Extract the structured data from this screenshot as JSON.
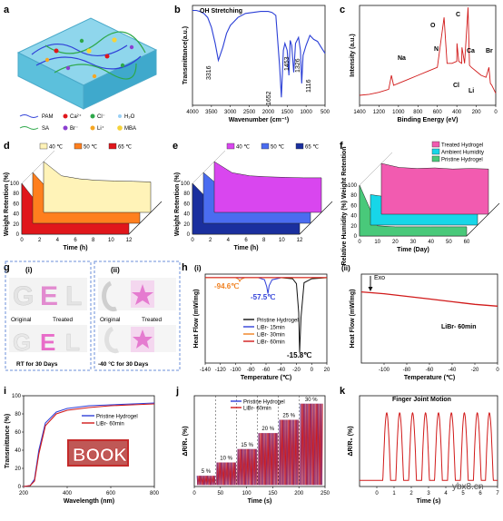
{
  "panels": {
    "a": {
      "letter": "a",
      "legend": [
        {
          "symbol": "line-blue",
          "label": "PAM"
        },
        {
          "symbol": "dot-red",
          "label": "Ca²⁺"
        },
        {
          "symbol": "dot-green",
          "label": "Cl⁻"
        },
        {
          "symbol": "water",
          "label": "H₂O"
        },
        {
          "symbol": "line-green",
          "label": "SA"
        },
        {
          "symbol": "dot-purple",
          "label": "Br⁻"
        },
        {
          "symbol": "dot-orange",
          "label": "Li⁺"
        },
        {
          "symbol": "mba-yellow",
          "label": "MBA"
        }
      ]
    },
    "b": {
      "letter": "b",
      "title": "OH Stretching",
      "peaks": [
        "3316",
        "1652",
        "1453",
        "1326",
        "1116"
      ]
    },
    "c": {
      "letter": "c",
      "peaks": [
        "O",
        "C",
        "Na",
        "N",
        "Ca",
        "Br",
        "Cl",
        "Li"
      ]
    },
    "d": {
      "letter": "d"
    },
    "e": {
      "letter": "e"
    },
    "f": {
      "letter": "f"
    },
    "g": {
      "letter": "g",
      "sub_i": "(i)",
      "sub_ii": "(ii)",
      "labels": {
        "original": "Original",
        "treated": "Treated",
        "rt": "RT for 30 Days",
        "cold": "-40 °C for 30 Days"
      },
      "letters_word": [
        "G",
        "E",
        "L"
      ]
    },
    "h": {
      "letter": "h",
      "sub_i": "(i)",
      "sub_ii": "(ii)",
      "annotations_i": [
        "-94.6℃",
        "-57.5℃",
        "-15.8℃"
      ],
      "annotation_ii_exo": "Exo",
      "annotation_ii_label": "LiBr- 60min"
    },
    "i": {
      "letter": "i",
      "book_text": "BOOK"
    },
    "j": {
      "letter": "j",
      "strain_labels": [
        "5 %",
        "10 %",
        "15 %",
        "20 %",
        "25 %",
        "30 %"
      ]
    },
    "k": {
      "letter": "k",
      "title": "Finger Joint Motion"
    }
  },
  "watermark": "ybx8.cn",
  "chart_data": [
    {
      "id": "b",
      "type": "line",
      "xlabel": "Wavenumber (cm⁻¹)",
      "ylabel": "Transmittance(a.u.)",
      "xlim": [
        4000,
        500
      ],
      "xticks": [
        4000,
        3500,
        3000,
        2500,
        2000,
        1500,
        1000,
        500
      ],
      "series": [
        {
          "color": "#2b3fd6",
          "x": [
            4000,
            3900,
            3800,
            3700,
            3600,
            3500,
            3400,
            3316,
            3200,
            3100,
            3000,
            2900,
            2800,
            2600,
            2400,
            2200,
            2000,
            1900,
            1800,
            1700,
            1652,
            1600,
            1560,
            1500,
            1453,
            1420,
            1380,
            1326,
            1280,
            1200,
            1150,
            1116,
            1080,
            1000,
            900,
            800,
            700,
            600,
            500
          ],
          "y": [
            0.95,
            0.95,
            0.94,
            0.92,
            0.88,
            0.78,
            0.62,
            0.45,
            0.58,
            0.72,
            0.8,
            0.84,
            0.88,
            0.92,
            0.93,
            0.94,
            0.94,
            0.93,
            0.9,
            0.4,
            0.08,
            0.55,
            0.62,
            0.55,
            0.3,
            0.65,
            0.6,
            0.33,
            0.62,
            0.68,
            0.55,
            0.22,
            0.5,
            0.6,
            0.7,
            0.66,
            0.64,
            0.58,
            0.52
          ]
        }
      ]
    },
    {
      "id": "c",
      "type": "line",
      "xlabel": "Binding Energy (eV)",
      "ylabel": "Intensity (a.u.)",
      "xlim": [
        1400,
        0
      ],
      "xticks": [
        1400,
        1200,
        1000,
        800,
        600,
        400,
        200,
        0
      ],
      "series": [
        {
          "color": "#d11a1a",
          "x": [
            1400,
            1300,
            1200,
            1100,
            1072,
            1050,
            1000,
            900,
            800,
            700,
            600,
            531,
            500,
            450,
            400,
            399,
            380,
            350,
            347,
            320,
            285,
            270,
            250,
            200,
            150,
            100,
            70,
            55,
            40,
            20,
            0
          ],
          "y": [
            0.1,
            0.11,
            0.13,
            0.16,
            0.3,
            0.2,
            0.22,
            0.26,
            0.3,
            0.34,
            0.38,
            0.88,
            0.42,
            0.42,
            0.44,
            0.62,
            0.44,
            0.42,
            0.58,
            0.42,
            0.98,
            0.4,
            0.38,
            0.34,
            0.3,
            0.28,
            0.38,
            0.22,
            0.2,
            0.16,
            0.12
          ]
        }
      ]
    },
    {
      "id": "d",
      "type": "area",
      "xlabel": "Time (h)",
      "ylabel": "Weight Retention (%)",
      "x": [
        0,
        2,
        4,
        6,
        8,
        10,
        12
      ],
      "ylim": [
        0,
        100
      ],
      "series": [
        {
          "name": "40 ℃",
          "color": "#fff3b8",
          "values": [
            100,
            72,
            66,
            63,
            62,
            61,
            60
          ]
        },
        {
          "name": "50 ℃",
          "color": "#ff7f1e",
          "values": [
            100,
            62,
            56,
            54,
            53,
            52,
            52
          ]
        },
        {
          "name": "65 ℃",
          "color": "#e0161b",
          "values": [
            100,
            55,
            49,
            47,
            46,
            45,
            45
          ]
        }
      ]
    },
    {
      "id": "e",
      "type": "area",
      "xlabel": "Time (h)",
      "ylabel": "Weight Retention (%)",
      "x": [
        0,
        2,
        4,
        6,
        8,
        10,
        12
      ],
      "ylim": [
        0,
        100
      ],
      "series": [
        {
          "name": "40 ℃",
          "color": "#d946ef",
          "values": [
            100,
            78,
            72,
            70,
            69,
            68,
            68
          ]
        },
        {
          "name": "50 ℃",
          "color": "#4a6cf0",
          "values": [
            100,
            70,
            64,
            62,
            61,
            60,
            60
          ]
        },
        {
          "name": "65 ℃",
          "color": "#1a2f9e",
          "values": [
            100,
            64,
            58,
            56,
            55,
            54,
            54
          ]
        }
      ]
    },
    {
      "id": "f",
      "type": "area",
      "xlabel": "Time (Day)",
      "ylabel": "Relative Humidity (%) Weight Retention",
      "x": [
        0,
        10,
        20,
        30,
        40,
        50,
        60
      ],
      "ylim": [
        0,
        100
      ],
      "series": [
        {
          "name": "Treated Hydrogel",
          "color": "#f25bb0",
          "values": [
            100,
            92,
            90,
            91,
            89,
            90,
            89
          ]
        },
        {
          "name": "Ambient Humidity",
          "color": "#17d6e8",
          "values": [
            60,
            55,
            62,
            50,
            58,
            52,
            56
          ]
        },
        {
          "name": "Pristine Hydrogel",
          "color": "#49c97a",
          "values": [
            100,
            20,
            18,
            18,
            18,
            18,
            18
          ]
        }
      ]
    },
    {
      "id": "h-i",
      "type": "line",
      "xlabel": "Temperature (℃)",
      "ylabel": "Heat Flow (mW/mg)",
      "xlim": [
        -140,
        20
      ],
      "xticks": [
        -140,
        -120,
        -100,
        -80,
        -60,
        -40,
        -20,
        0,
        20
      ],
      "series": [
        {
          "name": "Pristine Hydrogel",
          "color": "#111111",
          "x": [
            -140,
            -40,
            -25,
            -20,
            -17,
            -15.8,
            -14,
            -10,
            0,
            20
          ],
          "y": [
            0,
            0,
            -0.1,
            -0.6,
            -3.5,
            -7.5,
            -4,
            -0.5,
            -0.1,
            0
          ]
        },
        {
          "name": "LiBr- 15min",
          "color": "#3040d8",
          "x": [
            -140,
            -70,
            -62,
            -59,
            -57.5,
            -56,
            -52,
            -40,
            20
          ],
          "y": [
            0,
            0,
            -0.2,
            -0.9,
            -1.6,
            -0.8,
            -0.2,
            0,
            0
          ]
        },
        {
          "name": "LiBr- 30min",
          "color": "#f08020",
          "x": [
            -140,
            -100,
            -96,
            -94.6,
            -93,
            -88,
            20
          ],
          "y": [
            0,
            0,
            -0.15,
            -0.35,
            -0.15,
            0,
            0
          ]
        },
        {
          "name": "LiBr- 60min",
          "color": "#d11a1a",
          "x": [
            -140,
            20
          ],
          "y": [
            0.02,
            0.02
          ]
        }
      ]
    },
    {
      "id": "h-ii",
      "type": "line",
      "xlabel": "Temperature (℃)",
      "ylabel": "Heat Flow (mW/mg)",
      "xlim": [
        -120,
        0
      ],
      "xticks": [
        -100,
        -80,
        -60,
        -40,
        -20,
        0
      ],
      "series": [
        {
          "name": "LiBr- 60min",
          "color": "#d11a1a",
          "x": [
            -120,
            -100,
            -80,
            -60,
            -40,
            -20,
            0
          ],
          "y": [
            0.8,
            0.78,
            0.75,
            0.72,
            0.69,
            0.66,
            0.64
          ]
        }
      ]
    },
    {
      "id": "i",
      "type": "line",
      "xlabel": "Wavelength (nm)",
      "ylabel": "Transmittance (%)",
      "xlim": [
        200,
        800
      ],
      "ylim": [
        0,
        100
      ],
      "xticks": [
        200,
        400,
        600,
        800
      ],
      "yticks": [
        0,
        20,
        40,
        60,
        80,
        100
      ],
      "series": [
        {
          "name": "Pristine Hydrogel",
          "color": "#3040d8",
          "x": [
            200,
            230,
            250,
            270,
            300,
            350,
            400,
            500,
            600,
            700,
            800
          ],
          "y": [
            0,
            1,
            8,
            40,
            70,
            82,
            86,
            89,
            90,
            91,
            92
          ]
        },
        {
          "name": "LiBr- 60min",
          "color": "#d11a1a",
          "x": [
            200,
            230,
            250,
            270,
            300,
            350,
            400,
            500,
            600,
            700,
            800
          ],
          "y": [
            0,
            1,
            6,
            36,
            67,
            80,
            84,
            87,
            89,
            90,
            91
          ]
        }
      ]
    },
    {
      "id": "j",
      "type": "line",
      "xlabel": "Time (s)",
      "ylabel": "ΔR/R₀ (%)",
      "xlim": [
        0,
        250
      ],
      "xticks": [
        0,
        50,
        100,
        150,
        200,
        250
      ],
      "series": [
        {
          "name": "Pristine Hydrogel",
          "color": "#3040d8"
        },
        {
          "name": "LiBr- 60min",
          "color": "#d11a1a"
        }
      ],
      "segments": [
        {
          "x0": 5,
          "x1": 40,
          "level": 2
        },
        {
          "x0": 42,
          "x1": 80,
          "level": 4.5
        },
        {
          "x0": 82,
          "x1": 120,
          "level": 7
        },
        {
          "x0": 122,
          "x1": 160,
          "level": 10
        },
        {
          "x0": 162,
          "x1": 200,
          "level": 12.5
        },
        {
          "x0": 202,
          "x1": 245,
          "level": 15.5
        }
      ]
    },
    {
      "id": "k",
      "type": "line",
      "xlabel": "Time (s)",
      "ylabel": "ΔR/R₀ (%)",
      "xlim": [
        -1,
        7
      ],
      "xticks": [
        0,
        1,
        2,
        3,
        4,
        5,
        6,
        7
      ],
      "series": [
        {
          "color": "#d11a1a",
          "peaks": [
            0.35,
            1.1,
            1.85,
            2.6,
            3.35,
            4.1,
            4.85,
            5.6,
            6.3
          ]
        }
      ]
    }
  ]
}
